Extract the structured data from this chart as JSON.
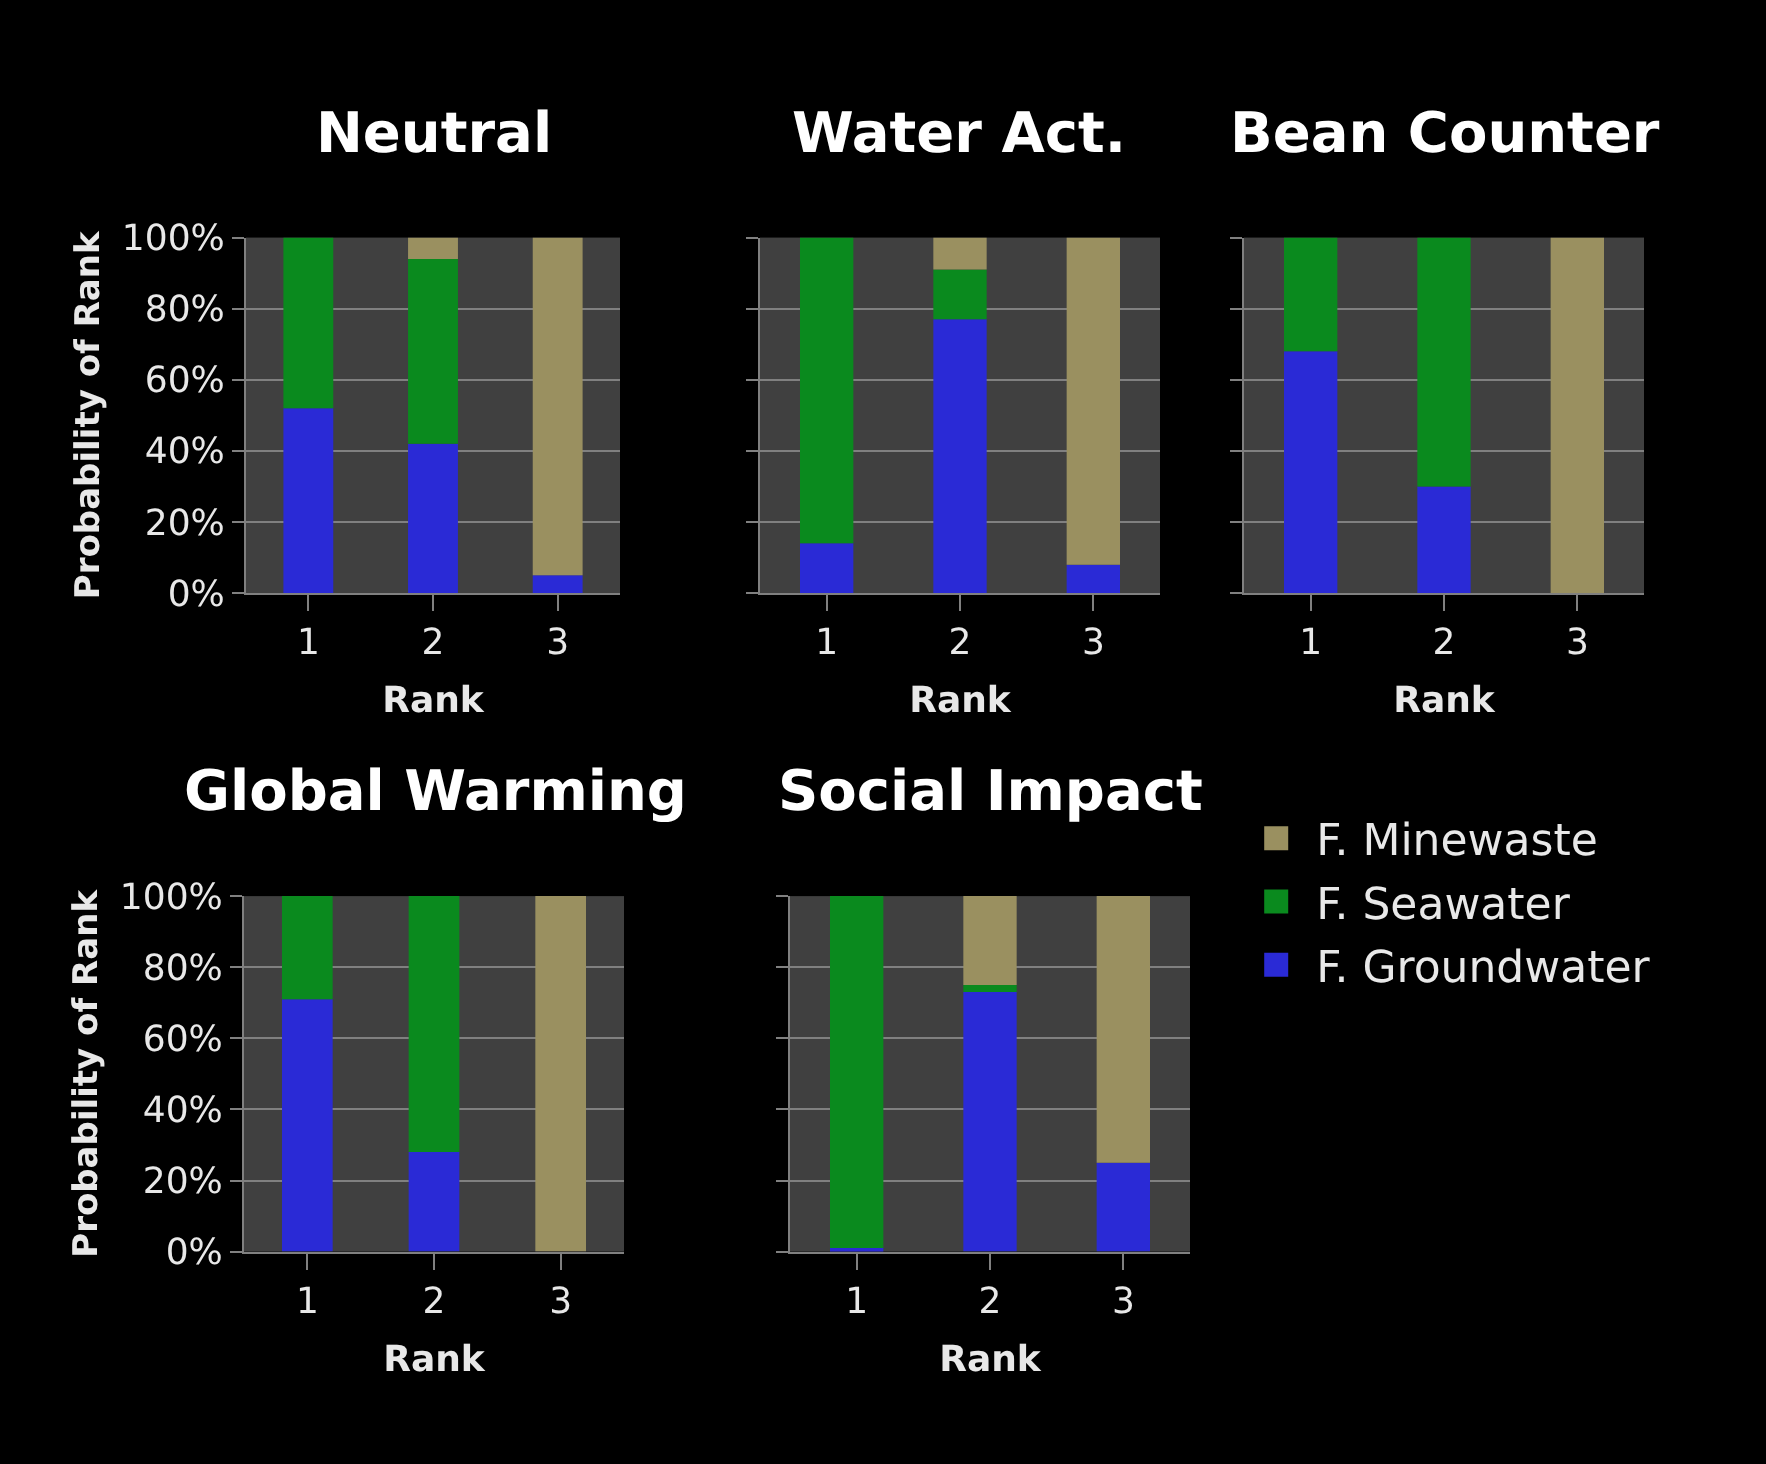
{
  "chart_data": [
    {
      "type": "bar",
      "stacked": true,
      "title": "Neutral",
      "xlabel": "Rank",
      "ylabel": "Probability of Rank",
      "categories": [
        "1",
        "2",
        "3"
      ],
      "ylim": [
        0,
        100
      ],
      "yticks": [
        {
          "value": 0,
          "label": "0%"
        },
        {
          "value": 20,
          "label": "20%"
        },
        {
          "value": 40,
          "label": "40%"
        },
        {
          "value": 60,
          "label": "60%"
        },
        {
          "value": 80,
          "label": "80%"
        },
        {
          "value": 100,
          "label": "100%"
        }
      ],
      "grid": "y",
      "series": [
        {
          "color": "#2a2ad6",
          "values": [
            52,
            42,
            5
          ]
        },
        {
          "color": "#0a8a1e",
          "values": [
            48,
            52,
            0
          ]
        },
        {
          "color": "#9a9060",
          "values": [
            0,
            6,
            95
          ]
        }
      ]
    },
    {
      "type": "bar",
      "stacked": true,
      "title": "Water Act.",
      "xlabel": "Rank",
      "categories": [
        "1",
        "2",
        "3"
      ],
      "ylim": [
        0,
        100
      ],
      "yticks": [
        0,
        20,
        40,
        60,
        80,
        100
      ],
      "grid": "y",
      "tick_labels": "x",
      "series": [
        {
          "color": "#2a2ad6",
          "values": [
            14,
            77,
            8
          ]
        },
        {
          "color": "#0a8a1e",
          "values": [
            86,
            14,
            0
          ]
        },
        {
          "color": "#9a9060",
          "values": [
            0,
            9,
            92
          ]
        }
      ]
    },
    {
      "type": "bar",
      "stacked": true,
      "title": "Bean Counter",
      "xlabel": "Rank",
      "categories": [
        "1",
        "2",
        "3"
      ],
      "ylim": [
        0,
        100
      ],
      "yticks": [
        0,
        20,
        40,
        60,
        80,
        100
      ],
      "grid": "y",
      "tick_labels": "x",
      "series": [
        {
          "color": "#2a2ad6",
          "values": [
            68,
            30,
            0
          ]
        },
        {
          "color": "#0a8a1e",
          "values": [
            32,
            70,
            0
          ]
        },
        {
          "color": "#9a9060",
          "values": [
            0,
            0,
            100
          ]
        }
      ]
    },
    {
      "type": "bar",
      "stacked": true,
      "title": "Global Warming",
      "xlabel": "Rank",
      "ylabel": "Probability of Rank",
      "categories": [
        "1",
        "2",
        "3"
      ],
      "ylim": [
        0,
        100
      ],
      "yticks": [
        {
          "value": 0,
          "label": "0%"
        },
        {
          "value": 20,
          "label": "20%"
        },
        {
          "value": 40,
          "label": "40%"
        },
        {
          "value": 60,
          "label": "60%"
        },
        {
          "value": 80,
          "label": "80%"
        },
        {
          "value": 100,
          "label": "100%"
        }
      ],
      "grid": "y",
      "series": [
        {
          "color": "#2a2ad6",
          "values": [
            71,
            28,
            0
          ]
        },
        {
          "color": "#0a8a1e",
          "values": [
            29,
            72,
            0
          ]
        },
        {
          "color": "#9a9060",
          "values": [
            0,
            0,
            100
          ]
        }
      ]
    },
    {
      "type": "bar",
      "stacked": true,
      "title": "Social Impact",
      "xlabel": "Rank",
      "categories": [
        "1",
        "2",
        "3"
      ],
      "ylim": [
        0,
        100
      ],
      "yticks": [
        0,
        20,
        40,
        60,
        80,
        100
      ],
      "grid": "y",
      "tick_labels": "x",
      "legend": "right",
      "series": [
        {
          "name": "F. Groundwater",
          "color": "#2a2ad6",
          "values": [
            1,
            73,
            25
          ]
        },
        {
          "name": "F. Seawater",
          "color": "#0a8a1e",
          "values": [
            99,
            2,
            0
          ]
        },
        {
          "name": "F. Minewaste",
          "color": "#9a9060",
          "values": [
            0,
            25,
            75
          ]
        }
      ]
    }
  ]
}
